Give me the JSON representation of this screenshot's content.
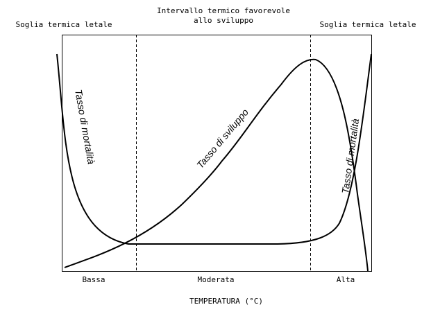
{
  "top_labels": {
    "left": "Soglia termica letale",
    "center_line1": "Intervallo termico favorevole",
    "center_line2": "allo sviluppo",
    "right": "Soglia termica letale"
  },
  "curve_labels": {
    "mortality_left": "Tasso di mortalità",
    "development": "Tasso di sviluppo",
    "mortality_right": "Tasso di mortalità"
  },
  "x_categories": [
    "Bassa",
    "Moderata",
    "Alta"
  ],
  "x_axis_title": "TEMPERATURA (°C)",
  "colors": {
    "line": "#000000",
    "background": "#ffffff"
  }
}
